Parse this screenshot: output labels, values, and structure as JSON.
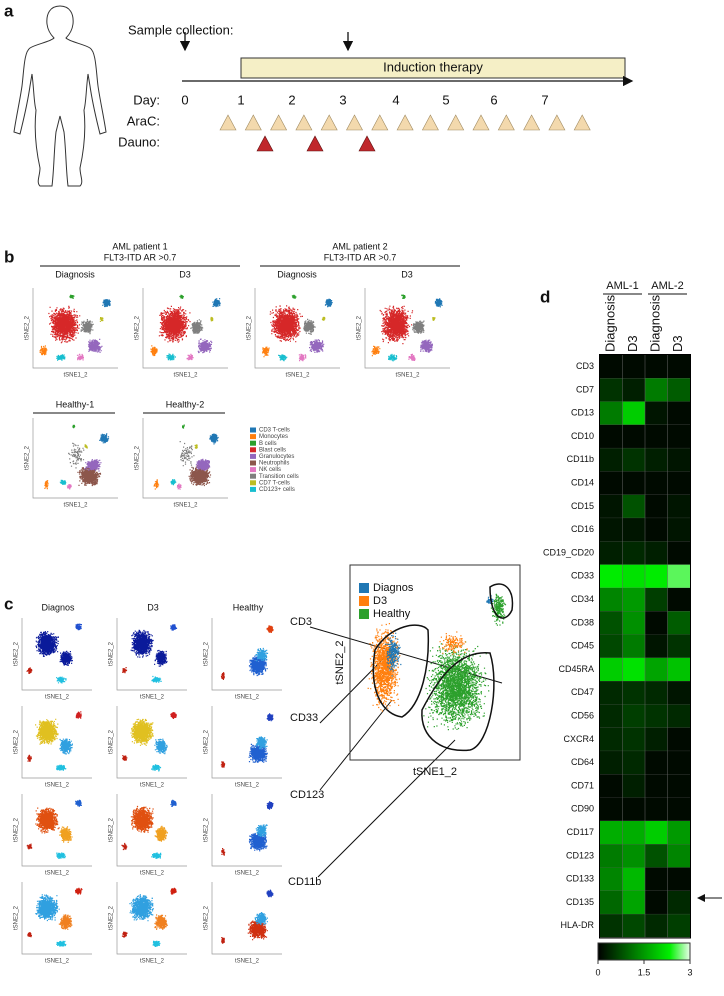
{
  "panel_a": {
    "label": "a",
    "sample_collection": "Sample collection:",
    "day_label": "Day:",
    "arac_label": "AraC:",
    "dauno_label": "Dauno:",
    "therapy": "Induction therapy",
    "days": [
      "0",
      "1",
      "2",
      "3",
      "4",
      "5",
      "6",
      "7"
    ]
  },
  "panel_b": {
    "label": "b",
    "groups": [
      {
        "title": "AML patient 1",
        "subtitle": "FLT3-ITD AR >0.7"
      },
      {
        "title": "AML patient 2",
        "subtitle": "FLT3-ITD AR >0.7"
      }
    ],
    "plots": [
      "Diagnosis",
      "D3",
      "Diagnosis",
      "D3",
      "Healthy-1",
      "Healthy-2"
    ],
    "x_axis": "tSNE1_2",
    "y_axis": "tSNE2_2",
    "legend": [
      {
        "name": "CD3 T-cells",
        "color": "#1f77b4"
      },
      {
        "name": "Monocytes",
        "color": "#ff7f0e"
      },
      {
        "name": "B cells",
        "color": "#2ca02c"
      },
      {
        "name": "Blast cells",
        "color": "#d62728"
      },
      {
        "name": "Granulocytes",
        "color": "#9467bd"
      },
      {
        "name": "Neutrophils",
        "color": "#8c564b"
      },
      {
        "name": "NK cells",
        "color": "#e377c2"
      },
      {
        "name": "Transition cells",
        "color": "#7f7f7f"
      },
      {
        "name": "CD7 T-cells",
        "color": "#bcbd22"
      },
      {
        "name": "CD123+ cells",
        "color": "#17becf"
      }
    ]
  },
  "panel_c": {
    "label": "c",
    "columns": [
      "Diagnos",
      "D3",
      "Healthy"
    ],
    "markers": [
      "CD3",
      "CD33",
      "CD123",
      "CD11b"
    ],
    "x_axis": "tSNE1_2",
    "y_axis": "tSNE2_2",
    "legend": [
      {
        "name": "Diagnos",
        "color": "#1f77b4"
      },
      {
        "name": "D3",
        "color": "#ff7f0e"
      },
      {
        "name": "Healthy",
        "color": "#2ca02c"
      }
    ]
  },
  "chart_data": {
    "type": "heatmap",
    "label": "d",
    "groups": [
      "AML-1",
      "AML-2"
    ],
    "columns": [
      "Diagnosis",
      "D3",
      "Diagnosis",
      "D3"
    ],
    "rows": [
      "CD3",
      "CD7",
      "CD13",
      "CD10",
      "CD11b",
      "CD14",
      "CD15",
      "CD16",
      "CD19_CD20",
      "CD33",
      "CD34",
      "CD38",
      "CD45",
      "CD45RA",
      "CD47",
      "CD56",
      "CXCR4",
      "CD64",
      "CD71",
      "CD90",
      "CD117",
      "CD123",
      "CD133",
      "CD135",
      "HLA-DR"
    ],
    "values": [
      [
        0.1,
        0.1,
        0.1,
        0.1
      ],
      [
        0.5,
        0.3,
        1.2,
        0.9
      ],
      [
        1.2,
        2.0,
        0.2,
        0.1
      ],
      [
        0.1,
        0.1,
        0.1,
        0.1
      ],
      [
        0.3,
        0.5,
        0.3,
        0.2
      ],
      [
        0.1,
        0.1,
        0.1,
        0.1
      ],
      [
        0.2,
        0.8,
        0.1,
        0.2
      ],
      [
        0.2,
        0.2,
        0.1,
        0.2
      ],
      [
        0.3,
        0.4,
        0.3,
        0.1
      ],
      [
        2.3,
        2.2,
        2.3,
        2.6
      ],
      [
        1.3,
        1.5,
        0.6,
        0.1
      ],
      [
        0.8,
        1.4,
        0.1,
        0.9
      ],
      [
        0.7,
        1.2,
        0.2,
        0.5
      ],
      [
        2.0,
        2.2,
        1.6,
        1.9
      ],
      [
        0.4,
        0.5,
        0.4,
        0.2
      ],
      [
        0.4,
        0.6,
        0.5,
        0.4
      ],
      [
        0.4,
        0.5,
        0.3,
        0.1
      ],
      [
        0.3,
        0.4,
        0.1,
        0.1
      ],
      [
        0.1,
        0.3,
        0.1,
        0.1
      ],
      [
        0.1,
        0.1,
        0.1,
        0.1
      ],
      [
        1.7,
        1.7,
        2.0,
        1.5
      ],
      [
        1.2,
        1.4,
        0.8,
        1.3
      ],
      [
        1.3,
        1.8,
        0.1,
        0.1
      ],
      [
        1.0,
        1.6,
        0.1,
        0.4
      ],
      [
        0.5,
        0.7,
        0.4,
        0.6
      ]
    ],
    "clim": [
      0,
      3
    ],
    "cticks": [
      0,
      1.5,
      3
    ]
  }
}
